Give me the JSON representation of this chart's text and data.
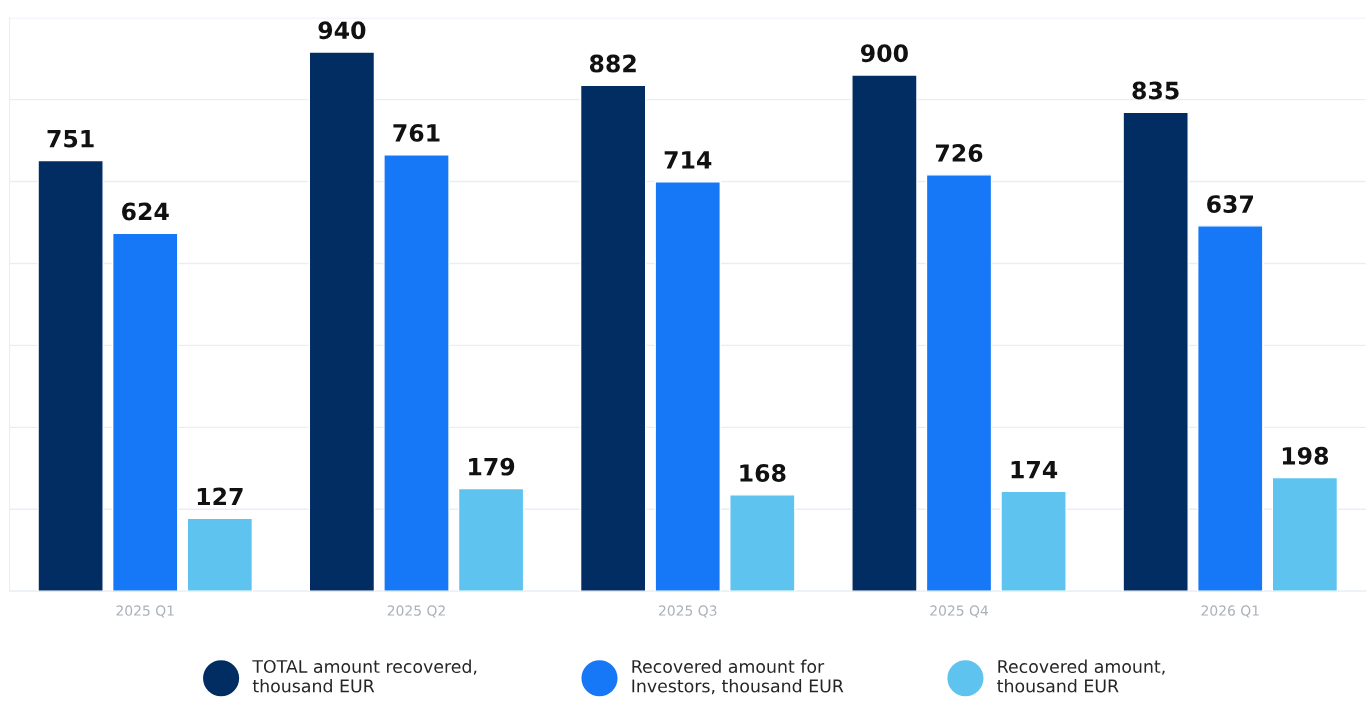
{
  "chart_data": {
    "type": "bar",
    "categories": [
      "2025 Q1",
      "2025 Q2",
      "2025 Q3",
      "2025 Q4",
      "2026 Q1"
    ],
    "series": [
      {
        "name": "TOTAL amount recovered, thousand EUR",
        "color": "#022d63",
        "values": [
          751,
          940,
          882,
          900,
          835
        ]
      },
      {
        "name": "Recovered amount for Investors, thousand EUR",
        "color": "#1778f7",
        "values": [
          624,
          761,
          714,
          726,
          637
        ]
      },
      {
        "name": "Recovered amount, thousand EUR",
        "color": "#5ec4ef",
        "values": [
          127,
          179,
          168,
          174,
          198
        ]
      }
    ],
    "ylim": [
      0,
      1000
    ],
    "yticks": [
      {
        "value": 0,
        "label": null
      },
      {
        "value": 142.9,
        "label": null
      },
      {
        "value": 285.7,
        "label": null
      },
      {
        "value": 428.6,
        "label": null
      },
      {
        "value": 571.4,
        "label": null
      },
      {
        "value": 714.3,
        "label": null
      },
      {
        "value": 857.1,
        "label": null
      },
      {
        "value": 1000,
        "label": null
      }
    ],
    "tick_labels": "x",
    "grid": "y",
    "data_labels": true,
    "legend": "bottom",
    "marker": "circle"
  }
}
